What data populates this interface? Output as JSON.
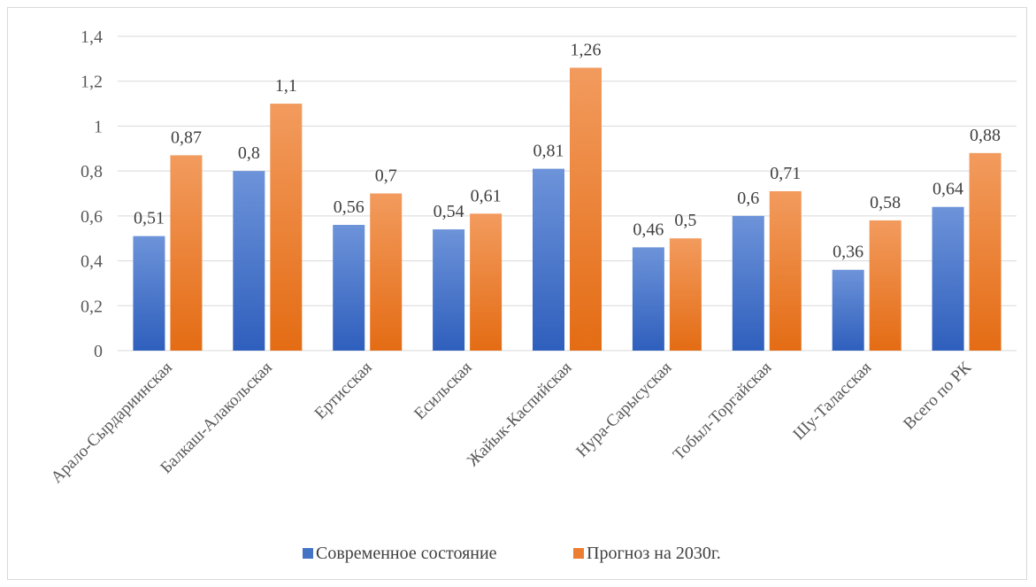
{
  "chart_data": {
    "type": "bar",
    "categories": [
      "Арало-Сырдариинская",
      "Балкаш-Алакольская",
      "Ертисская",
      "Есильская",
      "Жайык-Каспийская",
      "Нура-Сарысуская",
      "Тобыл-Торгайская",
      "Шу-Таласская",
      "Всего по РК"
    ],
    "series": [
      {
        "name": "Современное состояние",
        "values": [
          0.51,
          0.8,
          0.56,
          0.54,
          0.81,
          0.46,
          0.6,
          0.36,
          0.64
        ],
        "labels": [
          "0,51",
          "0,8",
          "0,56",
          "0,54",
          "0,81",
          "0,46",
          "0,6",
          "0,36",
          "0,64"
        ],
        "color": "#4472c4"
      },
      {
        "name": "Прогноз на 2030г.",
        "values": [
          0.87,
          1.1,
          0.7,
          0.61,
          1.26,
          0.5,
          0.71,
          0.58,
          0.88
        ],
        "labels": [
          "0,87",
          "1,1",
          "0,7",
          "0,61",
          "1,26",
          "0,5",
          "0,71",
          "0,58",
          "0,88"
        ],
        "color": "#ed7d31"
      }
    ],
    "yticks": [
      "0",
      "0,2",
      "0,4",
      "0,6",
      "0,8",
      "1",
      "1,2",
      "1,4"
    ],
    "ylim": [
      0,
      1.4
    ],
    "grid": true,
    "legend_position": "bottom",
    "title": "",
    "xlabel": "",
    "ylabel": ""
  }
}
